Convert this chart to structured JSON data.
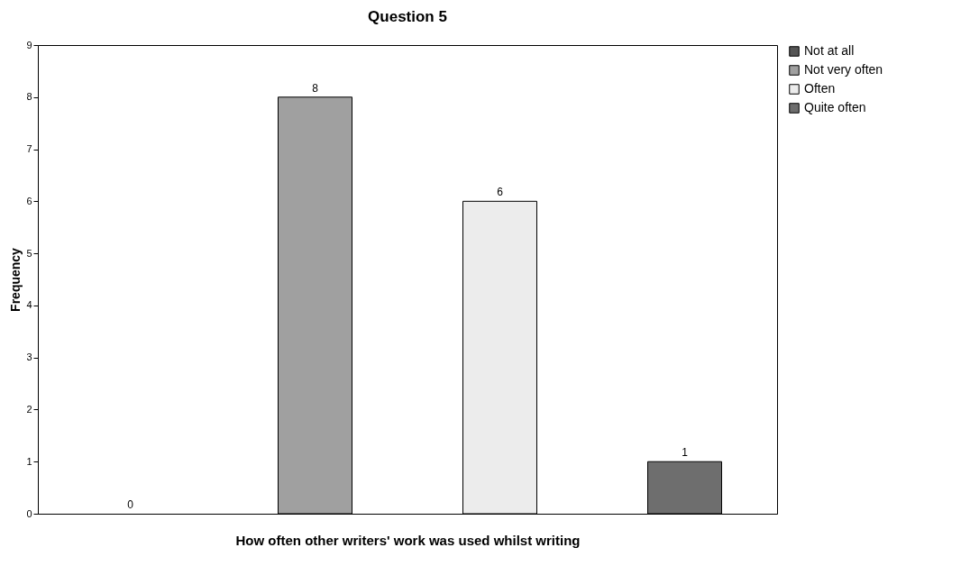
{
  "chart_data": {
    "type": "bar",
    "title": "Question 5",
    "xlabel": "How often other writers' work was used whilst writing",
    "ylabel": "Frequency",
    "categories": [
      null,
      null,
      null,
      null
    ],
    "series": [
      {
        "name": "Not at all",
        "color": "#555555",
        "values": [
          0,
          null,
          null,
          null
        ]
      },
      {
        "name": "Not very often",
        "color": "#a0a0a0",
        "values": [
          null,
          8,
          null,
          null
        ]
      },
      {
        "name": "Often",
        "color": "#ececec",
        "values": [
          null,
          null,
          6,
          null
        ]
      },
      {
        "name": "Quite often",
        "color": "#6e6e6e",
        "values": [
          null,
          null,
          null,
          1
        ]
      }
    ],
    "ylim": [
      0,
      9
    ],
    "yticks": [
      0,
      1,
      2,
      3,
      4,
      5,
      6,
      7,
      8,
      9
    ],
    "grid": false,
    "legend": "right",
    "data_labels": true
  }
}
